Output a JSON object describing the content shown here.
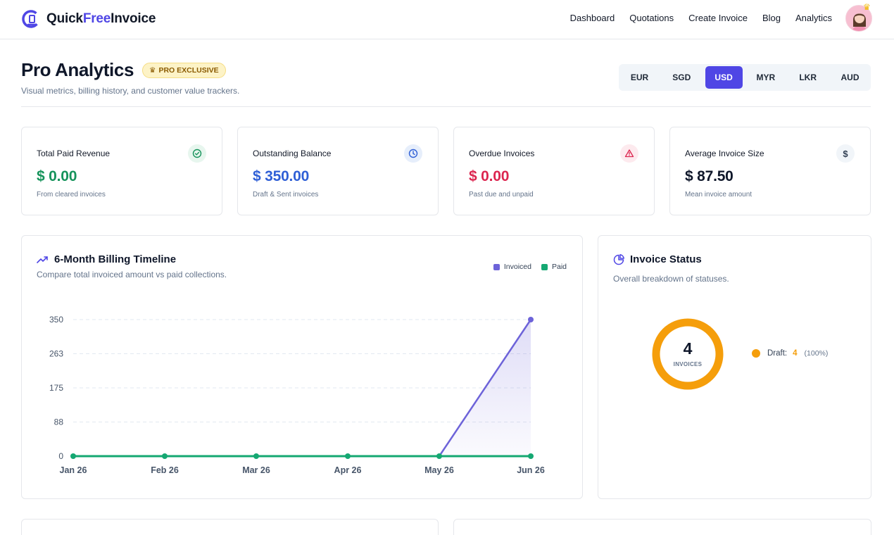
{
  "brand": {
    "name_part1": "Quick",
    "name_part2": "Free",
    "name_part3": "Invoice",
    "logo_icon": "quickfreeinvoice-logo-icon"
  },
  "nav": {
    "items": [
      {
        "label": "Dashboard"
      },
      {
        "label": "Quotations"
      },
      {
        "label": "Create Invoice"
      },
      {
        "label": "Blog"
      },
      {
        "label": "Analytics"
      }
    ],
    "avatar_icon": "user-avatar-icon"
  },
  "page": {
    "title": "Pro Analytics",
    "badge": "PRO EXCLUSIVE",
    "badge_icon": "crown-icon",
    "subtitle": "Visual metrics, billing history, and customer value trackers."
  },
  "currencies": {
    "options": [
      "EUR",
      "SGD",
      "USD",
      "MYR",
      "LKR",
      "AUD"
    ],
    "selected": "USD"
  },
  "stats": [
    {
      "label": "Total Paid Revenue",
      "value": "$ 0.00",
      "note": "From cleared invoices",
      "icon": "check-circle-icon",
      "color": "#16935b",
      "icon_bg": "#e7f6ee"
    },
    {
      "label": "Outstanding Balance",
      "value": "$ 350.00",
      "note": "Draft & Sent invoices",
      "icon": "clock-icon",
      "color": "#2f5fd6",
      "icon_bg": "#e6eefb"
    },
    {
      "label": "Overdue Invoices",
      "value": "$ 0.00",
      "note": "Past due and unpaid",
      "icon": "alert-triangle-icon",
      "color": "#dc2650",
      "icon_bg": "#fdeaee"
    },
    {
      "label": "Average Invoice Size",
      "value": "$ 87.50",
      "note": "Mean invoice amount",
      "icon": "dollar-icon",
      "color": "#0f172a",
      "icon_bg": "#f1f5f9"
    }
  ],
  "timeline": {
    "title": "6-Month Billing Timeline",
    "subtitle": "Compare total invoiced amount vs paid collections.",
    "icon": "trending-up-icon"
  },
  "status_panel": {
    "title": "Invoice Status",
    "subtitle": "Overall breakdown of statuses.",
    "icon": "pie-chart-icon",
    "total": "4",
    "total_caption": "INVOICES",
    "legend": [
      {
        "label": "Draft:",
        "count": "4",
        "percent": "(100%)",
        "color": "#f59e0b"
      }
    ]
  },
  "chart_data": [
    {
      "type": "line",
      "x": [
        "Jan 26",
        "Feb 26",
        "Mar 26",
        "Apr 26",
        "May 26",
        "Jun 26"
      ],
      "series": [
        {
          "name": "Invoiced",
          "values": [
            0,
            0,
            0,
            0,
            0,
            350
          ],
          "color": "#6d63d9"
        },
        {
          "name": "Paid",
          "values": [
            0,
            0,
            0,
            0,
            0,
            0
          ],
          "color": "#15a872"
        }
      ],
      "yticks": [
        "0",
        "88",
        "175",
        "263",
        "350"
      ],
      "ylim": [
        0,
        350
      ],
      "grid": true,
      "legend": "top-right"
    },
    {
      "type": "pie",
      "categories": [
        "Draft"
      ],
      "values": [
        4
      ],
      "colors": [
        "#f59e0b"
      ]
    }
  ]
}
